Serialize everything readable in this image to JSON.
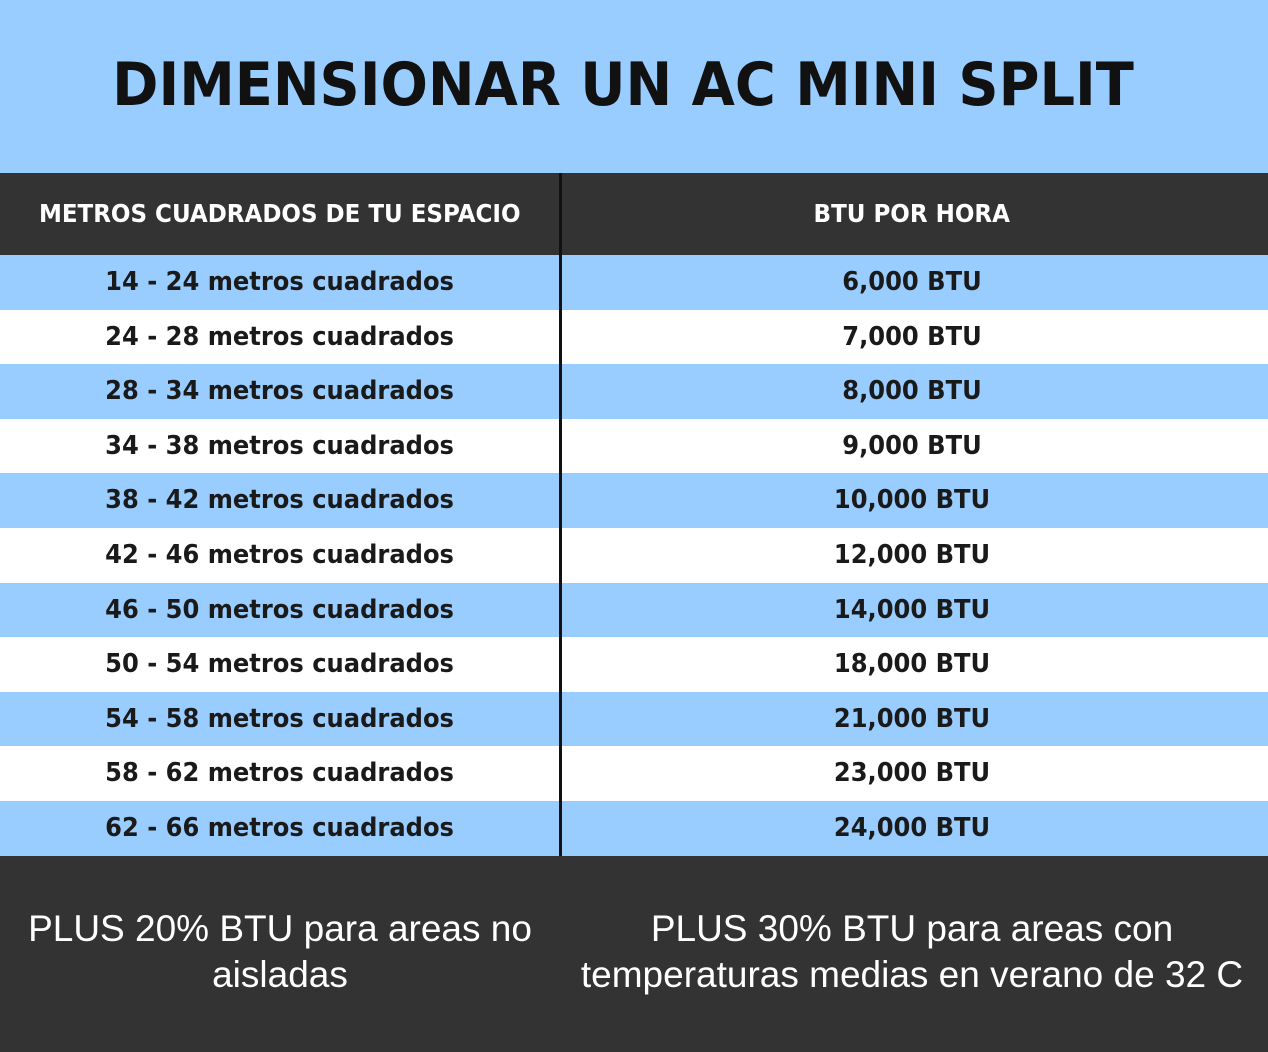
{
  "title": "DIMENSIONAR UN AC MINI SPLIT",
  "table": {
    "headers": {
      "area": "METROS CUADRADOS DE TU ESPACIO",
      "btu": "BTU POR HORA"
    },
    "rows": [
      {
        "area": "14 - 24 metros cuadrados",
        "btu": "6,000 BTU"
      },
      {
        "area": "24 - 28 metros cuadrados",
        "btu": "7,000 BTU"
      },
      {
        "area": "28 - 34 metros cuadrados",
        "btu": "8,000 BTU"
      },
      {
        "area": "34 - 38 metros cuadrados",
        "btu": "9,000 BTU"
      },
      {
        "area": "38 - 42 metros cuadrados",
        "btu": "10,000 BTU"
      },
      {
        "area": "42 - 46 metros cuadrados",
        "btu": "12,000 BTU"
      },
      {
        "area": "46 - 50 metros cuadrados",
        "btu": "14,000 BTU"
      },
      {
        "area": "50 - 54 metros cuadrados",
        "btu": "18,000 BTU"
      },
      {
        "area": "54 - 58 metros cuadrados",
        "btu": "21,000 BTU"
      },
      {
        "area": "58 - 62 metros cuadrados",
        "btu": "23,000 BTU"
      },
      {
        "area": "62 - 66 metros cuadrados",
        "btu": "24,000 BTU"
      }
    ]
  },
  "notes": {
    "left": "PLUS 20% BTU para areas no aisladas",
    "right": "PLUS 30% BTU para areas con temperaturas medias en verano de 32 C"
  },
  "colors": {
    "light_blue": "#99ccff",
    "dark_gray": "#333333",
    "white": "#ffffff"
  }
}
